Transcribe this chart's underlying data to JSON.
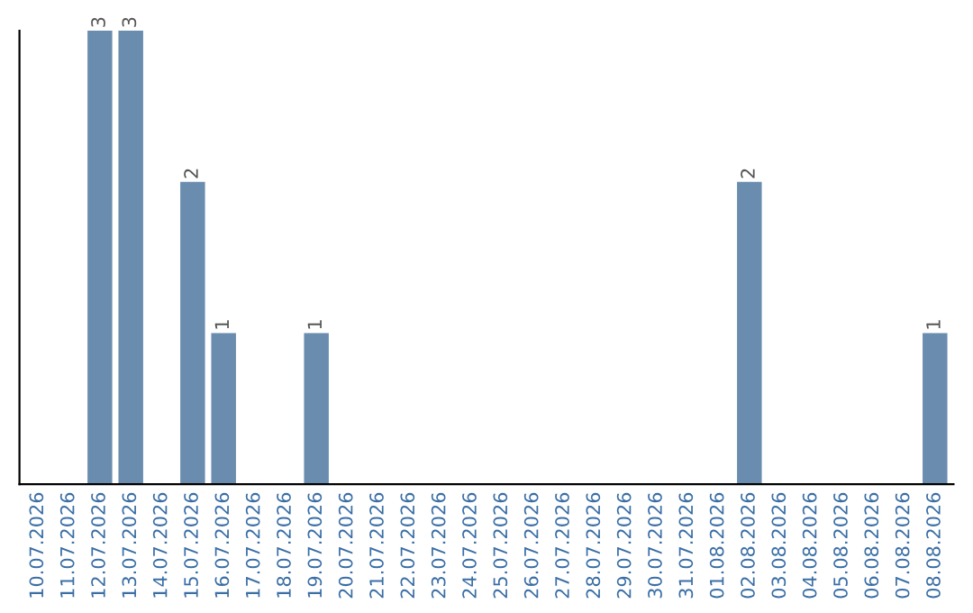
{
  "chart_data": {
    "type": "bar",
    "categories": [
      "10.07.2026",
      "11.07.2026",
      "12.07.2026",
      "13.07.2026",
      "14.07.2026",
      "15.07.2026",
      "16.07.2026",
      "17.07.2026",
      "18.07.2026",
      "19.07.2026",
      "20.07.2026",
      "21.07.2026",
      "22.07.2026",
      "23.07.2026",
      "24.07.2026",
      "25.07.2026",
      "26.07.2026",
      "27.07.2026",
      "28.07.2026",
      "29.07.2026",
      "30.07.2026",
      "31.07.2026",
      "01.08.2026",
      "02.08.2026",
      "03.08.2026",
      "04.08.2026",
      "05.08.2026",
      "06.08.2026",
      "07.08.2026",
      "08.08.2026"
    ],
    "values": [
      0,
      0,
      3,
      3,
      0,
      2,
      1,
      0,
      0,
      1,
      0,
      0,
      0,
      0,
      0,
      0,
      0,
      0,
      0,
      0,
      0,
      0,
      0,
      2,
      0,
      0,
      0,
      0,
      0,
      1
    ],
    "value_labels": [
      null,
      null,
      "3",
      "3",
      null,
      "2",
      "1",
      null,
      null,
      "1",
      null,
      null,
      null,
      null,
      null,
      null,
      null,
      null,
      null,
      null,
      null,
      null,
      null,
      "2",
      null,
      null,
      null,
      null,
      null,
      "1"
    ],
    "color": "#6a8caf",
    "grid": false,
    "legend": false
  }
}
